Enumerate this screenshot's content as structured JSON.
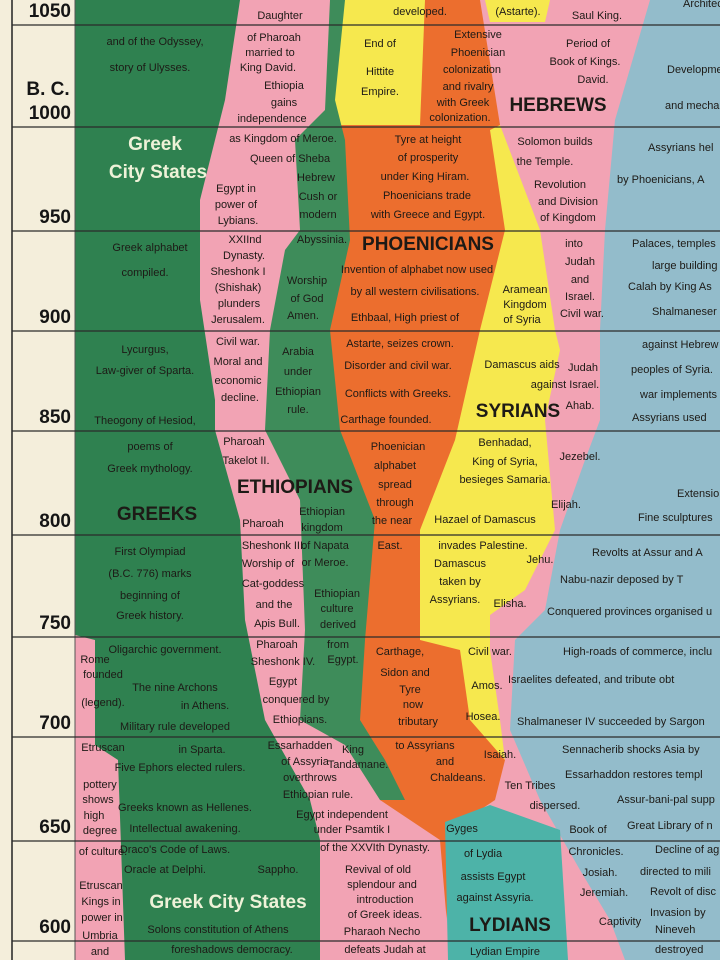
{
  "timeline": {
    "era": "B. C.",
    "years": [
      1050,
      1000,
      950,
      900,
      850,
      800,
      750,
      700,
      650,
      600
    ]
  },
  "regions": {
    "greeks": {
      "headings": [
        "Greek",
        "City States",
        "GREEKS",
        "Greek City States"
      ],
      "notes": [
        "and of the Odyssey,",
        "story of Ulysses.",
        "Greek alphabet",
        "compiled.",
        "Lycurgus,",
        "Law-giver of Sparta.",
        "Theogony of Hesiod,",
        "poems of",
        "Greek mythology.",
        "First Olympiad",
        "(B.C. 776) marks",
        "beginning of",
        "Greek history.",
        "Oligarchic government.",
        "The nine Archons",
        "in Athens.",
        "Military rule developed",
        "in Sparta.",
        "Five Ephors elected rulers.",
        "Greeks known as Hellenes.",
        "Intellectual awakening.",
        "Draco's Code of Laws.",
        "Oracle at Delphi.",
        "Sappho.",
        "Solons constitution of Athens",
        "foreshadows democracy."
      ]
    },
    "rome": {
      "headings": [],
      "notes": [
        "Rome",
        "founded",
        "(legend).",
        "Etruscan",
        "pottery",
        "shows",
        "high",
        "degree",
        "of culture.",
        "Etruscan",
        "Kings in",
        "power in",
        "Umbria",
        "and"
      ]
    },
    "egypt": {
      "headings": [],
      "notes": [
        "Daughter",
        "of Pharoah",
        "married to",
        "King David.",
        "Ethiopia",
        "gains",
        "independence",
        "as Kingdom of Meroe.",
        "Queen of Sheba",
        "Egypt in",
        "power of",
        "Lybians.",
        "XXIInd",
        "Dynasty.",
        "Sheshonk I",
        "(Shishak)",
        "plunders",
        "Jerusalem.",
        "Civil war.",
        "Moral and",
        "economic",
        "decline.",
        "Pharoah",
        "Takelot II.",
        "Pharoah",
        "Sheshonk III.",
        "Worship of",
        "Cat-goddess",
        "and the",
        "Apis Bull.",
        "Pharoah",
        "Sheshonk IV.",
        "Egypt",
        "conquered by",
        "Ethiopians.",
        "Essarhadden",
        "of Assyria",
        "overthrows",
        "Ethiopian rule.",
        "Egypt independent",
        "under Psamtik I",
        "of the XXVIth Dynasty.",
        "Revival of old",
        "splendour and",
        "introduction",
        "of Greek ideas.",
        "Pharaoh Necho",
        "defeats Judah at"
      ]
    },
    "ethiopians": {
      "headings": [
        "ETHIOPIANS"
      ],
      "notes": [
        "Hebrew",
        "Cush or",
        "modern",
        "Abyssinia.",
        "Worship",
        "of God",
        "Amen.",
        "Arabia",
        "under",
        "Ethiopian",
        "rule.",
        "Ethiopian",
        "kingdom",
        "of Napata",
        "or Meroe.",
        "Ethiopian",
        "culture",
        "derived",
        "from",
        "Egypt.",
        "King",
        "Tandamane."
      ]
    },
    "hittites": {
      "headings": [],
      "notes": [
        "End of",
        "Hittite",
        "Empire."
      ]
    },
    "phoenicians": {
      "headings": [
        "PHOENICIANS"
      ],
      "notes": [
        "developed.",
        "(Astarte).",
        "Extensive",
        "Phoenician",
        "colonization",
        "and rivalry",
        "with Greek",
        "colonization.",
        "Tyre at height",
        "of prosperity",
        "under King Hiram.",
        "Phoenicians trade",
        "with Greece and Egypt.",
        "Invention of alphabet now used",
        "by all western civilisations.",
        "Ethbaal, High priest of",
        "Astarte, seizes crown.",
        "Disorder and civil war.",
        "Conflicts with Greeks.",
        "Carthage founded.",
        "Phoenician",
        "alphabet",
        "spread",
        "through",
        "the near",
        "East.",
        "Carthage,",
        "Sidon and",
        "Tyre",
        "now",
        "tributary",
        "to Assyrians",
        "and",
        "Chaldeans."
      ]
    },
    "hebrews": {
      "headings": [
        "HEBREWS"
      ],
      "notes": [
        "Saul King.",
        "Period of",
        "Book of Kings.",
        "David.",
        "Solomon builds",
        "the Temple.",
        "Revolution",
        "and Division",
        "of Kingdom",
        "into",
        "Judah",
        "and",
        "Israel.",
        "Civil war.",
        "Judah",
        "against Israel.",
        "Ahab.",
        "Jezebel.",
        "Elijah.",
        "Jehu.",
        "Elisha.",
        "Civil war.",
        "Amos.",
        "Hosea.",
        "Isaiah.",
        "Ten Tribes",
        "dispersed.",
        "Book of",
        "Chronicles.",
        "Josiah.",
        "Jeremiah.",
        "Captivity"
      ]
    },
    "syrians": {
      "headings": [
        "SYRIANS"
      ],
      "notes": [
        "Aramean",
        "Kingdom",
        "of Syria",
        "Damascus aids",
        "Benhadad,",
        "King of Syria,",
        "besieges Samaria.",
        "Hazael of Damascus",
        "invades Palestine.",
        "Damascus",
        "taken by",
        "Assyrians."
      ]
    },
    "lydians": {
      "headings": [
        "LYDIANS"
      ],
      "notes": [
        "Gyges",
        "of Lydia",
        "assists Egypt",
        "against Assyria.",
        "Lydian Empire"
      ]
    },
    "assyrians": {
      "headings": [],
      "notes": [
        "Architec",
        "Developme",
        "and mecha",
        "Assyrians hel",
        "by Phoenicians, A",
        "Palaces, temples",
        "large building",
        "Calah by King As",
        "Shalmaneser",
        "against Hebrew",
        "peoples of Syria.",
        "war implements",
        "Assyrians used",
        "Extension of",
        "Fine sculptures",
        "Revolts at Assur and A",
        "Nabu-nazir deposed by T",
        "Conquered provinces organised u",
        "High-roads of commerce, inclu",
        "Israelites defeated, and tribute obt",
        "Shalmaneser IV succeeded by Sargon",
        "Sennacherib shocks Asia by",
        "Essarhaddon restores templ",
        "Assur-bani-pal supp",
        "Great Library of n",
        "Decline of ag",
        "directed to mili",
        "Revolt of disc",
        "Invasion by",
        "Nineveh",
        "destroyed"
      ]
    }
  }
}
